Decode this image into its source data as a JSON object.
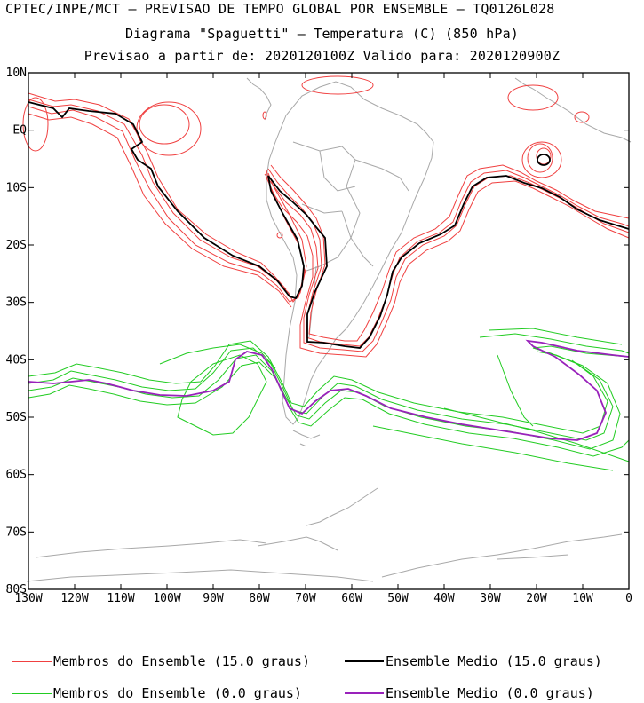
{
  "title": {
    "line1": "CPTEC/INPE/MCT – PREVISAO DE TEMPO GLOBAL POR ENSEMBLE – TQ0126L028",
    "line2": "Diagrama \"Spaguetti\" – Temperatura (C) (850 hPa)",
    "line3": "Previsao a partir de: 2020120100Z  Valido para: 2020120900Z"
  },
  "axes": {
    "lat_labels": [
      "10N",
      "EQ",
      "10S",
      "20S",
      "30S",
      "40S",
      "50S",
      "60S",
      "70S",
      "80S"
    ],
    "lat_values": [
      10,
      0,
      -10,
      -20,
      -30,
      -40,
      -50,
      -60,
      -70,
      -80
    ],
    "lon_labels": [
      "130W",
      "120W",
      "110W",
      "100W",
      "90W",
      "80W",
      "70W",
      "60W",
      "50W",
      "40W",
      "30W",
      "20W",
      "10W",
      "0"
    ],
    "lon_values": [
      -130,
      -120,
      -110,
      -100,
      -90,
      -80,
      -70,
      -60,
      -50,
      -40,
      -30,
      -20,
      -10,
      0
    ],
    "lon_range": [
      -130,
      0
    ],
    "lat_range": [
      -80,
      10
    ]
  },
  "colors": {
    "members_15": "#f04040",
    "mean_15": "#000000",
    "members_0": "#22cc22",
    "mean_0": "#9922bb",
    "coast": "#a8a8a8"
  },
  "legend": {
    "members_15_label": "Membros do Ensemble (15.0 graus)",
    "mean_15_label": "Ensemble Medio (15.0 graus)",
    "members_0_label": "Membros do Ensemble (0.0 graus)",
    "mean_0_label": "Ensemble Medio (0.0 graus)"
  }
}
